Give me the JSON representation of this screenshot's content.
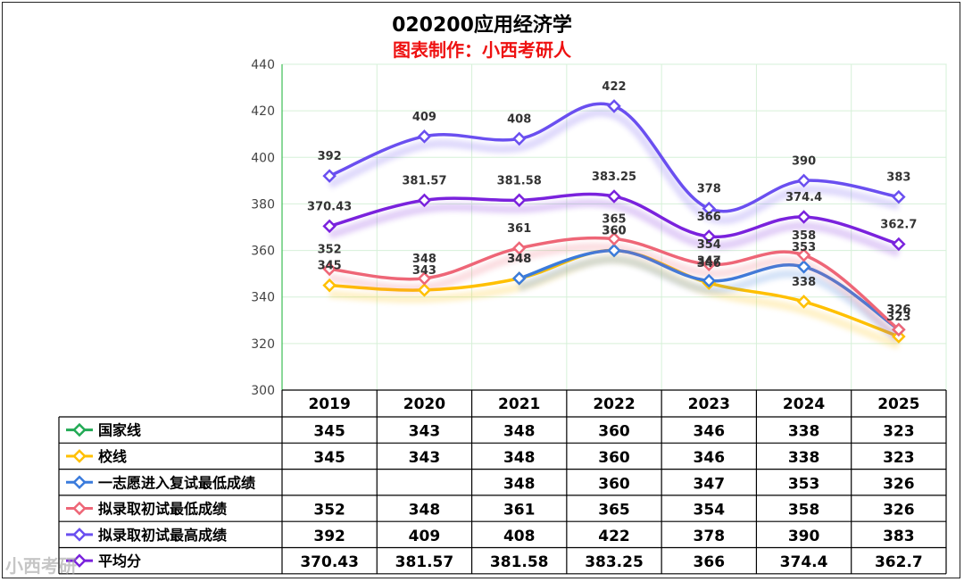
{
  "chart_data": {
    "type": "line",
    "title": "020200应用经济学",
    "subtitle": "图表制作：小西考研人",
    "categories": [
      "2019",
      "2020",
      "2021",
      "2022",
      "2023",
      "2024",
      "2025"
    ],
    "ylim": [
      300,
      440
    ],
    "yticks": [
      300,
      320,
      340,
      360,
      380,
      400,
      420,
      440
    ],
    "grid": true,
    "legend": "data-table-left",
    "series": [
      {
        "name": "国家线",
        "color": "#22aa55",
        "values": [
          345,
          343,
          348,
          360,
          346,
          338,
          323
        ],
        "labels": [
          "345",
          "343",
          "348",
          "360",
          "346",
          "338",
          "323"
        ],
        "draw": false
      },
      {
        "name": "校线",
        "color": "#ffc000",
        "values": [
          345,
          343,
          348,
          360,
          346,
          338,
          323
        ],
        "labels": [
          "345",
          "343",
          "348",
          "360",
          "346",
          "338",
          "323"
        ],
        "draw": true
      },
      {
        "name": "一志愿进入复试最低成绩",
        "color": "#3a7bdc",
        "values": [
          null,
          null,
          348,
          360,
          347,
          353,
          326
        ],
        "labels": [
          "",
          "",
          "348",
          "360",
          "347",
          "353",
          "326"
        ],
        "draw": true
      },
      {
        "name": "拟录取初试最低成绩",
        "color": "#ee6677",
        "values": [
          352,
          348,
          361,
          365,
          354,
          358,
          326
        ],
        "labels": [
          "352",
          "348",
          "361",
          "365",
          "354",
          "358",
          "326"
        ],
        "draw": true
      },
      {
        "name": "拟录取初试最高成绩",
        "color": "#6a4ff0",
        "values": [
          392,
          409,
          408,
          422,
          378,
          390,
          383
        ],
        "labels": [
          "392",
          "409",
          "408",
          "422",
          "378",
          "390",
          "383"
        ],
        "draw": true
      },
      {
        "name": "平均分",
        "color": "#7a22dd",
        "values": [
          370.43,
          381.57,
          381.58,
          383.25,
          366,
          374.4,
          362.7
        ],
        "labels": [
          "370.43",
          "381.57",
          "381.58",
          "383.25",
          "366",
          "374.4",
          "362.7"
        ],
        "draw": true
      }
    ]
  },
  "watermark": "小西考研"
}
